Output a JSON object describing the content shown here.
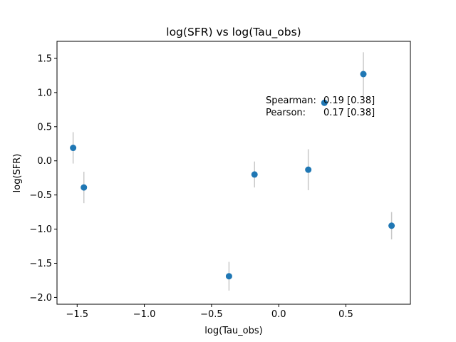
{
  "chart_data": {
    "type": "scatter",
    "title": "log(SFR) vs log(Tau_obs)",
    "xlabel": "log(Tau_obs)",
    "ylabel": "log(SFR)",
    "xlim": [
      -1.65,
      0.98
    ],
    "ylim": [
      -2.1,
      1.75
    ],
    "xticks": [
      -1.5,
      -1.0,
      -0.5,
      0.0,
      0.5
    ],
    "xtick_labels": [
      "−1.5",
      "−1.0",
      "−0.5",
      "0.0",
      "0.5"
    ],
    "yticks": [
      -2.0,
      -1.5,
      -1.0,
      -0.5,
      0.0,
      0.5,
      1.0,
      1.5
    ],
    "ytick_labels": [
      "−2.0",
      "−1.5",
      "−1.0",
      "−0.5",
      "0.0",
      "0.5",
      "1.0",
      "1.5"
    ],
    "grid": false,
    "marker_color": "#1f77b4",
    "errorbar_color": "#c8c8c8",
    "points": [
      {
        "x": -1.53,
        "y": 0.19,
        "yerr": 0.23
      },
      {
        "x": -1.45,
        "y": -0.39,
        "yerr": 0.23
      },
      {
        "x": -0.37,
        "y": -1.69,
        "yerr": 0.21
      },
      {
        "x": -0.18,
        "y": -0.2,
        "yerr": 0.19
      },
      {
        "x": 0.22,
        "y": -0.13,
        "yerr": 0.3
      },
      {
        "x": 0.34,
        "y": 0.85,
        "yerr": 0.0
      },
      {
        "x": 0.63,
        "y": 1.27,
        "yerr": 0.32
      },
      {
        "x": 0.84,
        "y": -0.95,
        "yerr": 0.2
      }
    ],
    "annotations": [
      {
        "label": "Spearman:",
        "value": "0.19 [0.38]"
      },
      {
        "label": "Pearson:",
        "value": "0.17 [0.38]"
      }
    ]
  }
}
